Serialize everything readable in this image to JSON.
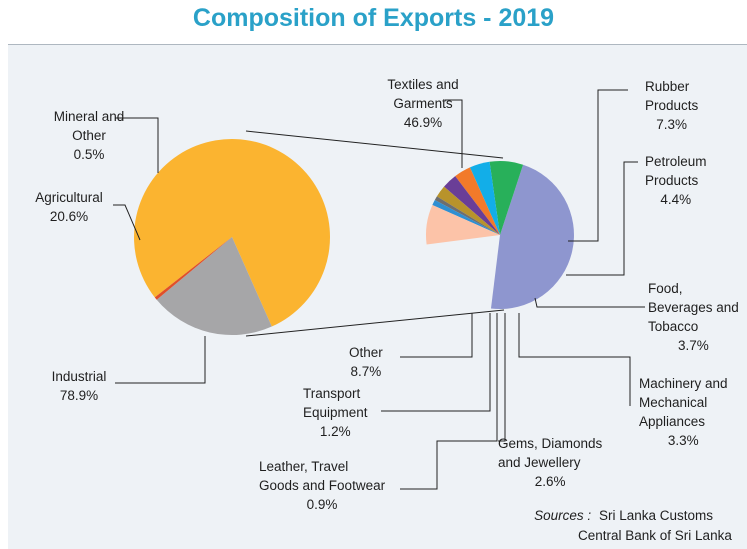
{
  "title": "Composition of Exports - 2019",
  "colors": {
    "title": "#2aa1c8",
    "industrial": "#fbb430",
    "agricultural": "#a6a6a8",
    "mineral": "#e04f2a",
    "textiles": "#8e96cf",
    "rubber": "#28b05a",
    "petroleum": "#12aee8",
    "food": "#f27a2a",
    "machinery": "#6a3e97",
    "gems": "#b8932b",
    "leather": "#6d6e70",
    "transport": "#2f8fd2",
    "other": "#fcc3a8"
  },
  "chart_data": [
    {
      "type": "pie",
      "title": "Composition of Exports - 2019",
      "slices": [
        {
          "key": "industrial",
          "label_lines": [
            "Industrial"
          ],
          "value_label": "78.9%",
          "value": 78.9
        },
        {
          "key": "agricultural",
          "label_lines": [
            "Agricultural"
          ],
          "value_label": "20.6%",
          "value": 20.6
        },
        {
          "key": "mineral",
          "label_lines": [
            "Mineral and",
            "Other"
          ],
          "value_label": "0.5%",
          "value": 0.5
        }
      ]
    },
    {
      "type": "pie",
      "slices": [
        {
          "key": "textiles",
          "label_lines": [
            "Textiles and",
            "Garments"
          ],
          "value_label": "46.9%",
          "value": 46.9
        },
        {
          "key": "rubber",
          "label_lines": [
            "Rubber",
            "Products"
          ],
          "value_label": "7.3%",
          "value": 7.3
        },
        {
          "key": "petroleum",
          "label_lines": [
            "Petroleum",
            "Products"
          ],
          "value_label": "4.4%",
          "value": 4.4
        },
        {
          "key": "food",
          "label_lines": [
            "Food,",
            "Beverages and",
            "Tobacco"
          ],
          "value_label": "3.7%",
          "value": 3.7
        },
        {
          "key": "machinery",
          "label_lines": [
            "Machinery and",
            "Mechanical",
            "Appliances"
          ],
          "value_label": "3.3%",
          "value": 3.3
        },
        {
          "key": "gems",
          "label_lines": [
            "Gems, Diamonds",
            "and Jewellery"
          ],
          "value_label": "2.6%",
          "value": 2.6
        },
        {
          "key": "leather",
          "label_lines": [
            "Leather, Travel",
            "Goods and Footwear"
          ],
          "value_label": "0.9%",
          "value": 0.9
        },
        {
          "key": "transport",
          "label_lines": [
            "Transport",
            "Equipment"
          ],
          "value_label": "1.2%",
          "value": 1.2
        },
        {
          "key": "other",
          "label_lines": [
            "Other"
          ],
          "value_label": "8.7%",
          "value": 8.7
        }
      ]
    }
  ],
  "sources": {
    "prefix": "Sources :",
    "line1": "Sri Lanka Customs",
    "line2": "Central Bank of Sri Lanka"
  }
}
